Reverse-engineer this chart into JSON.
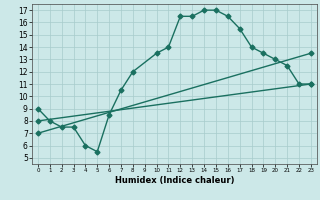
{
  "title": "",
  "xlabel": "Humidex (Indice chaleur)",
  "xlim": [
    -0.5,
    23.5
  ],
  "ylim": [
    4.5,
    17.5
  ],
  "xticks": [
    0,
    1,
    2,
    3,
    4,
    5,
    6,
    7,
    8,
    9,
    10,
    11,
    12,
    13,
    14,
    15,
    16,
    17,
    18,
    19,
    20,
    21,
    22,
    23
  ],
  "yticks": [
    5,
    6,
    7,
    8,
    9,
    10,
    11,
    12,
    13,
    14,
    15,
    16,
    17
  ],
  "bg_color": "#cce8e8",
  "line_color": "#1a7060",
  "grid_color": "#a8cccc",
  "line1_x": [
    0,
    1,
    2,
    3,
    4,
    5,
    6,
    7,
    8,
    10,
    11,
    12,
    13,
    14,
    15,
    16,
    17,
    18,
    19,
    20,
    21,
    22,
    23
  ],
  "line1_y": [
    9,
    8,
    7.5,
    7.5,
    6,
    5.5,
    8.5,
    10.5,
    12,
    13.5,
    14,
    16.5,
    16.5,
    17,
    17,
    16.5,
    15.5,
    14,
    13.5,
    13,
    12.5,
    11,
    11
  ],
  "line2_x": [
    0,
    23
  ],
  "line2_y": [
    8.0,
    11.0
  ],
  "line3_x": [
    0,
    23
  ],
  "line3_y": [
    7.0,
    13.5
  ],
  "marker": "D",
  "markersize": 2.5,
  "linewidth": 1.0,
  "tick_fontsize_x": 4.0,
  "tick_fontsize_y": 5.5,
  "xlabel_fontsize": 6.0
}
